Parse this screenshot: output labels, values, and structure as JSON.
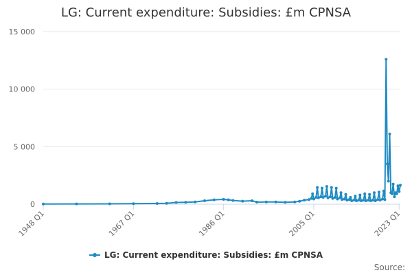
{
  "chart_data": {
    "type": "line",
    "title": "LG: Current expenditure: Subsidies: £m CPNSA",
    "xlabel": "",
    "ylabel": "",
    "x_start": "1948 Q1",
    "x_end": "2023 Q2",
    "ylim": [
      0,
      15000
    ],
    "yticks": [
      {
        "value": 0,
        "label": "0"
      },
      {
        "value": 5000,
        "label": "5 000"
      },
      {
        "value": 10000,
        "label": "10 000"
      },
      {
        "value": 15000,
        "label": "15 000"
      }
    ],
    "xticks": [
      {
        "year": 1948,
        "label": "1948 Q1"
      },
      {
        "year": 1967,
        "label": "1967 Q1"
      },
      {
        "year": 1986,
        "label": "1986 Q1"
      },
      {
        "year": 2005,
        "label": "2005 Q1"
      },
      {
        "year": 2023,
        "label": "2023 Q1"
      }
    ],
    "grid": true,
    "legend_position": "bottom",
    "color": "#1f8bc3",
    "series": [
      {
        "name": "LG: Current expenditure: Subsidies: £m CPNSA",
        "points": [
          [
            "1948 Q1",
            20
          ],
          [
            "1955 Q1",
            25
          ],
          [
            "1962 Q1",
            30
          ],
          [
            "1967 Q1",
            40
          ],
          [
            "1972 Q1",
            60
          ],
          [
            "1974 Q1",
            80
          ],
          [
            "1976 Q1",
            150
          ],
          [
            "1978 Q1",
            170
          ],
          [
            "1980 Q1",
            200
          ],
          [
            "1982 Q1",
            300
          ],
          [
            "1984 Q1",
            380
          ],
          [
            "1986 Q1",
            420
          ],
          [
            "1987 Q1",
            380
          ],
          [
            "1988 Q1",
            320
          ],
          [
            "1990 Q1",
            260
          ],
          [
            "1992 Q1",
            300
          ],
          [
            "1993 Q1",
            180
          ],
          [
            "1995 Q1",
            190
          ],
          [
            "1997 Q1",
            200
          ],
          [
            "1999 Q1",
            160
          ],
          [
            "2001 Q1",
            200
          ],
          [
            "2002 Q1",
            250
          ],
          [
            "2003 Q1",
            350
          ],
          [
            "2004 Q1",
            400
          ],
          [
            "2004 Q3",
            500
          ],
          [
            "2004 Q4",
            900
          ],
          [
            "2005 Q1",
            450
          ],
          [
            "2005 Q3",
            600
          ],
          [
            "2005 Q4",
            1450
          ],
          [
            "2006 Q1",
            550
          ],
          [
            "2006 Q3",
            650
          ],
          [
            "2006 Q4",
            1400
          ],
          [
            "2007 Q1",
            600
          ],
          [
            "2007 Q3",
            700
          ],
          [
            "2007 Q4",
            1550
          ],
          [
            "2008 Q1",
            550
          ],
          [
            "2008 Q3",
            650
          ],
          [
            "2008 Q4",
            1450
          ],
          [
            "2009 Q1",
            500
          ],
          [
            "2009 Q3",
            600
          ],
          [
            "2009 Q4",
            1400
          ],
          [
            "2010 Q1",
            450
          ],
          [
            "2010 Q3",
            550
          ],
          [
            "2010 Q4",
            1000
          ],
          [
            "2011 Q1",
            400
          ],
          [
            "2011 Q3",
            450
          ],
          [
            "2011 Q4",
            850
          ],
          [
            "2012 Q1",
            350
          ],
          [
            "2012 Q3",
            400
          ],
          [
            "2012 Q4",
            600
          ],
          [
            "2013 Q1",
            300
          ],
          [
            "2013 Q3",
            350
          ],
          [
            "2013 Q4",
            700
          ],
          [
            "2014 Q1",
            300
          ],
          [
            "2014 Q3",
            350
          ],
          [
            "2014 Q4",
            800
          ],
          [
            "2015 Q1",
            300
          ],
          [
            "2015 Q3",
            350
          ],
          [
            "2015 Q4",
            900
          ],
          [
            "2016 Q1",
            300
          ],
          [
            "2016 Q3",
            350
          ],
          [
            "2016 Q4",
            850
          ],
          [
            "2017 Q1",
            300
          ],
          [
            "2017 Q3",
            350
          ],
          [
            "2017 Q4",
            1000
          ],
          [
            "2018 Q1",
            300
          ],
          [
            "2018 Q3",
            400
          ],
          [
            "2018 Q4",
            1050
          ],
          [
            "2019 Q1",
            350
          ],
          [
            "2019 Q3",
            450
          ],
          [
            "2019 Q4",
            1150
          ],
          [
            "2020 Q1",
            400
          ],
          [
            "2020 Q2",
            12600
          ],
          [
            "2020 Q3",
            3500
          ],
          [
            "2020 Q4",
            2000
          ],
          [
            "2021 Q1",
            6100
          ],
          [
            "2021 Q2",
            1000
          ],
          [
            "2021 Q3",
            900
          ],
          [
            "2021 Q4",
            1750
          ],
          [
            "2022 Q1",
            650
          ],
          [
            "2022 Q2",
            1000
          ],
          [
            "2022 Q3",
            900
          ],
          [
            "2022 Q4",
            1600
          ],
          [
            "2023 Q1",
            1100
          ],
          [
            "2023 Q2",
            1650
          ]
        ]
      }
    ]
  },
  "source_label": "Source:"
}
